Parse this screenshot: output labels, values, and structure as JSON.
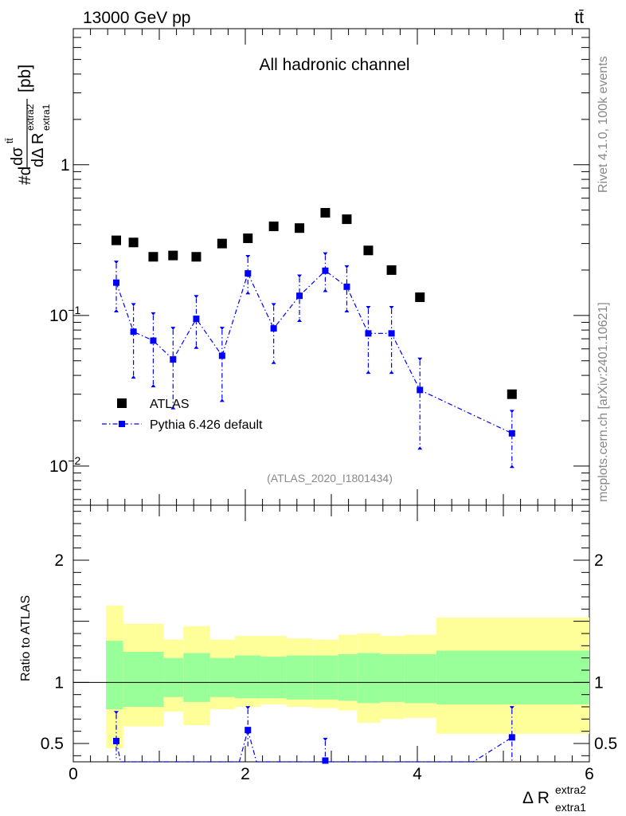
{
  "header": {
    "energy_label": "13000 GeV pp",
    "process_label": "tt̄",
    "channel_label": "All hadronic channel",
    "analysis_id": "(ATLAS_2020_I1801434)",
    "rivet_label": "Rivet 4.1.0,  100k events",
    "mcplots_label": "mcplots.cern.ch [arXiv:2401.10621]"
  },
  "axes": {
    "y_main_label": "#dσ^{tt̄}/dΔR^{extra2}_{extra1} [pb]",
    "y_main_parts": {
      "num_prefix": "#d",
      "sigma": "dσ",
      "sigma_sup": "tt̄",
      "den": "dΔ R",
      "den_sub": "extra1",
      "den_sup": "extra2",
      "unit": "[pb]"
    },
    "y_ratio_label": "Ratio to ATLAS",
    "x_label_main": "Δ R",
    "x_label_sup": "extra2",
    "x_label_sub": "extra1",
    "main_ticks": [
      {
        "value": 1,
        "label": "1",
        "sup": ""
      },
      {
        "value": 0.1,
        "label": "10",
        "sup": "−1"
      },
      {
        "value": 0.01,
        "label": "10",
        "sup": "−2"
      }
    ],
    "ratio_ticks": [
      {
        "value": 0.5,
        "label": "0.5"
      },
      {
        "value": 1,
        "label": "1"
      },
      {
        "value": 2,
        "label": "2"
      }
    ],
    "x_ticks": [
      {
        "value": 0,
        "label": "0"
      },
      {
        "value": 2,
        "label": "2"
      },
      {
        "value": 4,
        "label": "4"
      },
      {
        "value": 6,
        "label": "6"
      }
    ]
  },
  "legend": [
    {
      "name": "ATLAS",
      "color": "#000000"
    },
    {
      "name": "Pythia 6.426 default",
      "color": "#0000ff"
    }
  ],
  "chart_data": {
    "type": "scatter",
    "title": "All hadronic channel",
    "xlabel": "Δ R extra1 extra2",
    "ylabel": "#dσ/dΔR [pb]",
    "xlim": [
      0,
      6
    ],
    "ylim_main": [
      0.0055,
      8
    ],
    "ylim_ratio": [
      0.35,
      2.45
    ],
    "y_scale_main": "log",
    "colors": {
      "data": "#000000",
      "mc": "#0000ff",
      "band_inner": "#99ff99",
      "band_outer": "#ffff99"
    },
    "series": [
      {
        "name": "ATLAS",
        "x": [
          0.5,
          0.7,
          0.93,
          1.16,
          1.43,
          1.73,
          2.03,
          2.33,
          2.63,
          2.93,
          3.18,
          3.43,
          3.7,
          4.03,
          5.1
        ],
        "y": [
          0.315,
          0.305,
          0.245,
          0.25,
          0.245,
          0.3,
          0.325,
          0.39,
          0.38,
          0.48,
          0.435,
          0.27,
          0.2,
          0.132,
          0.03
        ]
      },
      {
        "name": "Pythia 6.426 default",
        "x": [
          0.5,
          0.7,
          0.93,
          1.16,
          1.43,
          1.73,
          2.03,
          2.33,
          2.63,
          2.93,
          3.18,
          3.43,
          3.7,
          4.03,
          5.1
        ],
        "y": [
          0.165,
          0.078,
          0.068,
          0.051,
          0.095,
          0.054,
          0.19,
          0.082,
          0.135,
          0.198,
          0.155,
          0.076,
          0.076,
          0.032,
          0.0165
        ],
        "y_low": [
          0.11,
          0.04,
          0.035,
          0.025,
          0.063,
          0.028,
          0.145,
          0.05,
          0.095,
          0.15,
          0.11,
          0.043,
          0.043,
          0.0135,
          0.0102
        ],
        "y_high": [
          0.22,
          0.115,
          0.1,
          0.08,
          0.13,
          0.08,
          0.24,
          0.115,
          0.178,
          0.25,
          0.205,
          0.11,
          0.11,
          0.05,
          0.0225
        ]
      }
    ],
    "ratio": {
      "x": [
        0.5,
        2.03,
        2.93,
        5.1
      ],
      "y": [
        0.52,
        0.61,
        0.36,
        0.55
      ],
      "y_low": [
        0.38,
        0.47,
        0.35,
        0.36
      ],
      "y_high": [
        0.74,
        0.78,
        0.52,
        0.78
      ],
      "line_points": [
        [
          0.5,
          0.52
        ],
        [
          0.55,
          0.35
        ],
        [
          1.93,
          0.35
        ],
        [
          2.03,
          0.61
        ],
        [
          2.13,
          0.35
        ],
        [
          2.9,
          0.35
        ],
        [
          2.93,
          0.36
        ],
        [
          2.96,
          0.35
        ],
        [
          4.65,
          0.35
        ],
        [
          5.1,
          0.55
        ]
      ],
      "bands": [
        {
          "x0": 0.38,
          "x1": 0.58,
          "outer": [
            0.46,
            1.63
          ],
          "inner": [
            0.78,
            1.34
          ]
        },
        {
          "x0": 0.58,
          "x1": 1.05,
          "outer": [
            0.64,
            1.48
          ],
          "inner": [
            0.8,
            1.25
          ]
        },
        {
          "x0": 1.05,
          "x1": 1.28,
          "outer": [
            0.76,
            1.35
          ],
          "inner": [
            0.88,
            1.2
          ]
        },
        {
          "x0": 1.28,
          "x1": 1.59,
          "outer": [
            0.65,
            1.46
          ],
          "inner": [
            0.84,
            1.24
          ]
        },
        {
          "x0": 1.59,
          "x1": 1.88,
          "outer": [
            0.78,
            1.35
          ],
          "inner": [
            0.88,
            1.2
          ]
        },
        {
          "x0": 1.88,
          "x1": 2.18,
          "outer": [
            0.8,
            1.38
          ],
          "inner": [
            0.87,
            1.22
          ]
        },
        {
          "x0": 2.18,
          "x1": 2.48,
          "outer": [
            0.82,
            1.38
          ],
          "inner": [
            0.87,
            1.21
          ]
        },
        {
          "x0": 2.48,
          "x1": 2.78,
          "outer": [
            0.8,
            1.36
          ],
          "inner": [
            0.86,
            1.22
          ]
        },
        {
          "x0": 2.78,
          "x1": 3.08,
          "outer": [
            0.79,
            1.35
          ],
          "inner": [
            0.86,
            1.22
          ]
        },
        {
          "x0": 3.08,
          "x1": 3.3,
          "outer": [
            0.77,
            1.39
          ],
          "inner": [
            0.85,
            1.23
          ]
        },
        {
          "x0": 3.3,
          "x1": 3.57,
          "outer": [
            0.67,
            1.4
          ],
          "inner": [
            0.83,
            1.24
          ]
        },
        {
          "x0": 3.57,
          "x1": 3.85,
          "outer": [
            0.7,
            1.38
          ],
          "inner": [
            0.84,
            1.23
          ]
        },
        {
          "x0": 3.85,
          "x1": 4.22,
          "outer": [
            0.71,
            1.39
          ],
          "inner": [
            0.83,
            1.23
          ]
        },
        {
          "x0": 4.22,
          "x1": 6.0,
          "outer": [
            0.58,
            1.53
          ],
          "inner": [
            0.82,
            1.26
          ]
        }
      ]
    }
  }
}
